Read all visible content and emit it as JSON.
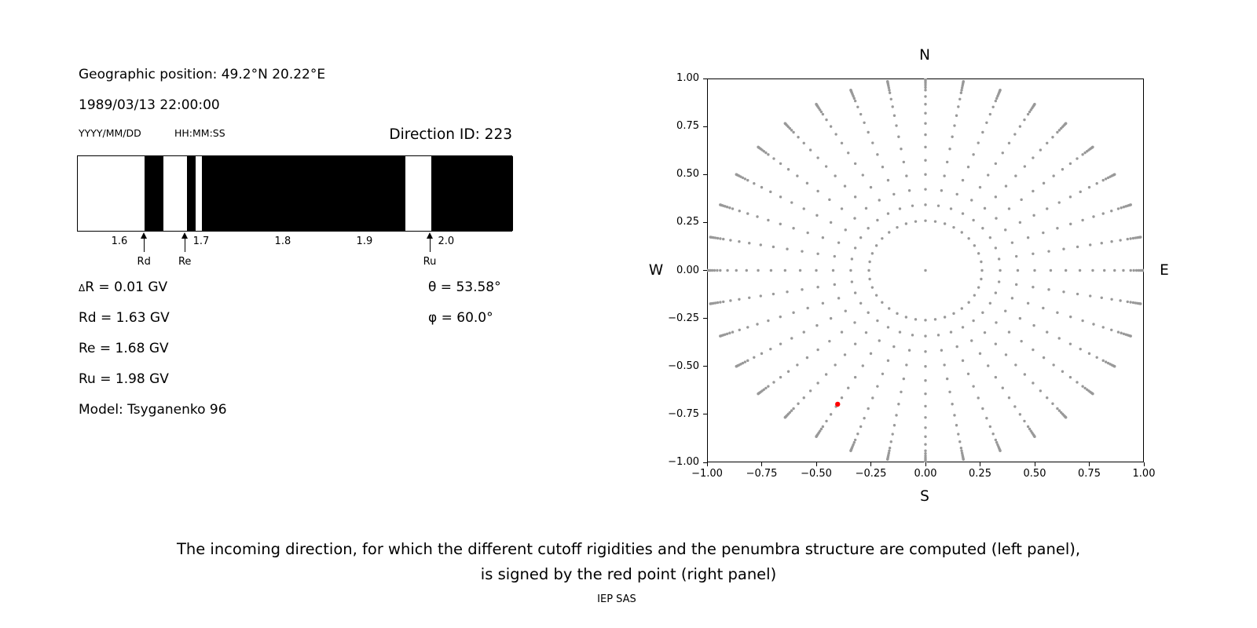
{
  "left_panel": {
    "geo_position": "Geographic position: 49.2°N 20.22°E",
    "datetime": "1989/03/13 22:00:00",
    "date_format": "YYYY/MM/DD",
    "time_format": "HH:MM:SS",
    "direction_id": "Direction ID: 223",
    "delta_r_symbol": "Δ",
    "delta_r_rest": "R = 0.01 GV",
    "rd": "Rd = 1.63 GV",
    "re": "Re = 1.68 GV",
    "ru": "Ru = 1.98 GV",
    "model": "Model: Tsyganenko 96",
    "theta": "θ = 53.58°",
    "phi": "φ = 60.0°"
  },
  "caption": {
    "line1": "The incoming direction, for which the different cutoff rigidities and the penumbra structure are computed (left panel),",
    "line2": "is signed by the red point (right panel)",
    "credit": "IEP SAS"
  },
  "chart_data": [
    {
      "type": "bar",
      "name": "penumbra-structure",
      "xlim": [
        1.548,
        2.081
      ],
      "xticks": [
        1.6,
        1.7,
        1.8,
        1.9,
        2.0
      ],
      "bar_color": "#000000",
      "background": "#ffffff",
      "forbidden_bands_GV": [
        [
          1.63,
          1.653
        ],
        [
          1.682,
          1.692
        ],
        [
          1.7,
          1.949
        ],
        [
          1.981,
          2.081
        ]
      ],
      "markers": [
        {
          "label": "Rd",
          "x": 1.63
        },
        {
          "label": "Re",
          "x": 1.68
        },
        {
          "label": "Ru",
          "x": 1.98
        }
      ]
    },
    {
      "type": "scatter",
      "name": "incoming-direction-map",
      "xlim": [
        -1.0,
        1.0
      ],
      "ylim": [
        -1.0,
        1.0
      ],
      "xticks": [
        -1.0,
        -0.75,
        -0.5,
        -0.25,
        0.0,
        0.25,
        0.5,
        0.75,
        1.0
      ],
      "yticks": [
        -1.0,
        -0.75,
        -0.5,
        -0.25,
        0.0,
        0.25,
        0.5,
        0.75,
        1.0
      ],
      "cardinal_labels": {
        "top": "N",
        "bottom": "S",
        "left": "W",
        "right": "E"
      },
      "grid_dots": {
        "color": "#999999",
        "dot_radius_px": 1.7,
        "center_dot": true,
        "ring": {
          "radius": 0.259,
          "count": 36
        },
        "spokes": {
          "azimuth_step_deg": 10,
          "zenith_deg": [
            20,
            25,
            30,
            35,
            40,
            45,
            50,
            55,
            60,
            65,
            70,
            72.5,
            75,
            77.5,
            80,
            82.5,
            85,
            87.5,
            90
          ]
        }
      },
      "red_point": {
        "x": -0.402,
        "y": -0.697,
        "radius_px": 3.2,
        "color": "#ff0000"
      }
    }
  ]
}
